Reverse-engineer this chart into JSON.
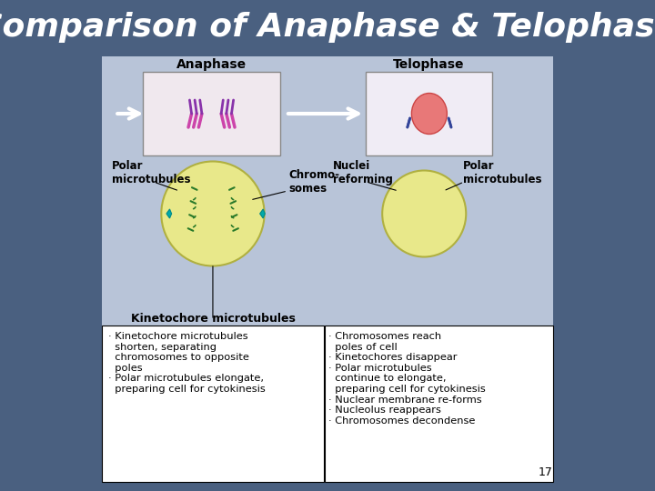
{
  "title": "Comparison of Anaphase & Telophase",
  "title_color": "#FFFFFF",
  "title_fontsize": 26,
  "background_color": "#4a6080",
  "main_panel_color": "#b8c4d8",
  "text_box_color": "#FFFFFF",
  "slide_number": "17",
  "anaphase_label": "Anaphase",
  "telophase_label": "Telophase",
  "left_labels": {
    "polar": "Polar\nmicrotubules",
    "chromo": "Chromo-\nsomes",
    "kineto": "Kinetochore microtubules"
  },
  "right_labels": {
    "nuclei": "Nuclei\nreforming",
    "polar": "Polar\nmicrotubules"
  },
  "anaphase_bullets": [
    "· Kinetochore microtubules\n  shorten, separating\n  chromosomes to opposite\n  poles",
    "· Polar microtubules elongate,\n  preparing cell for cytokinesis"
  ],
  "telophase_bullets": [
    "· Chromosomes reach\n  poles of cell",
    "· Kinetochores disappear",
    "· Polar microtubules\n  continue to elongate,\n  preparing cell for cytokinesis",
    "· Nuclear membrane re-forms",
    "· Nucleolus reappears",
    "· Chromosomes decondense"
  ]
}
